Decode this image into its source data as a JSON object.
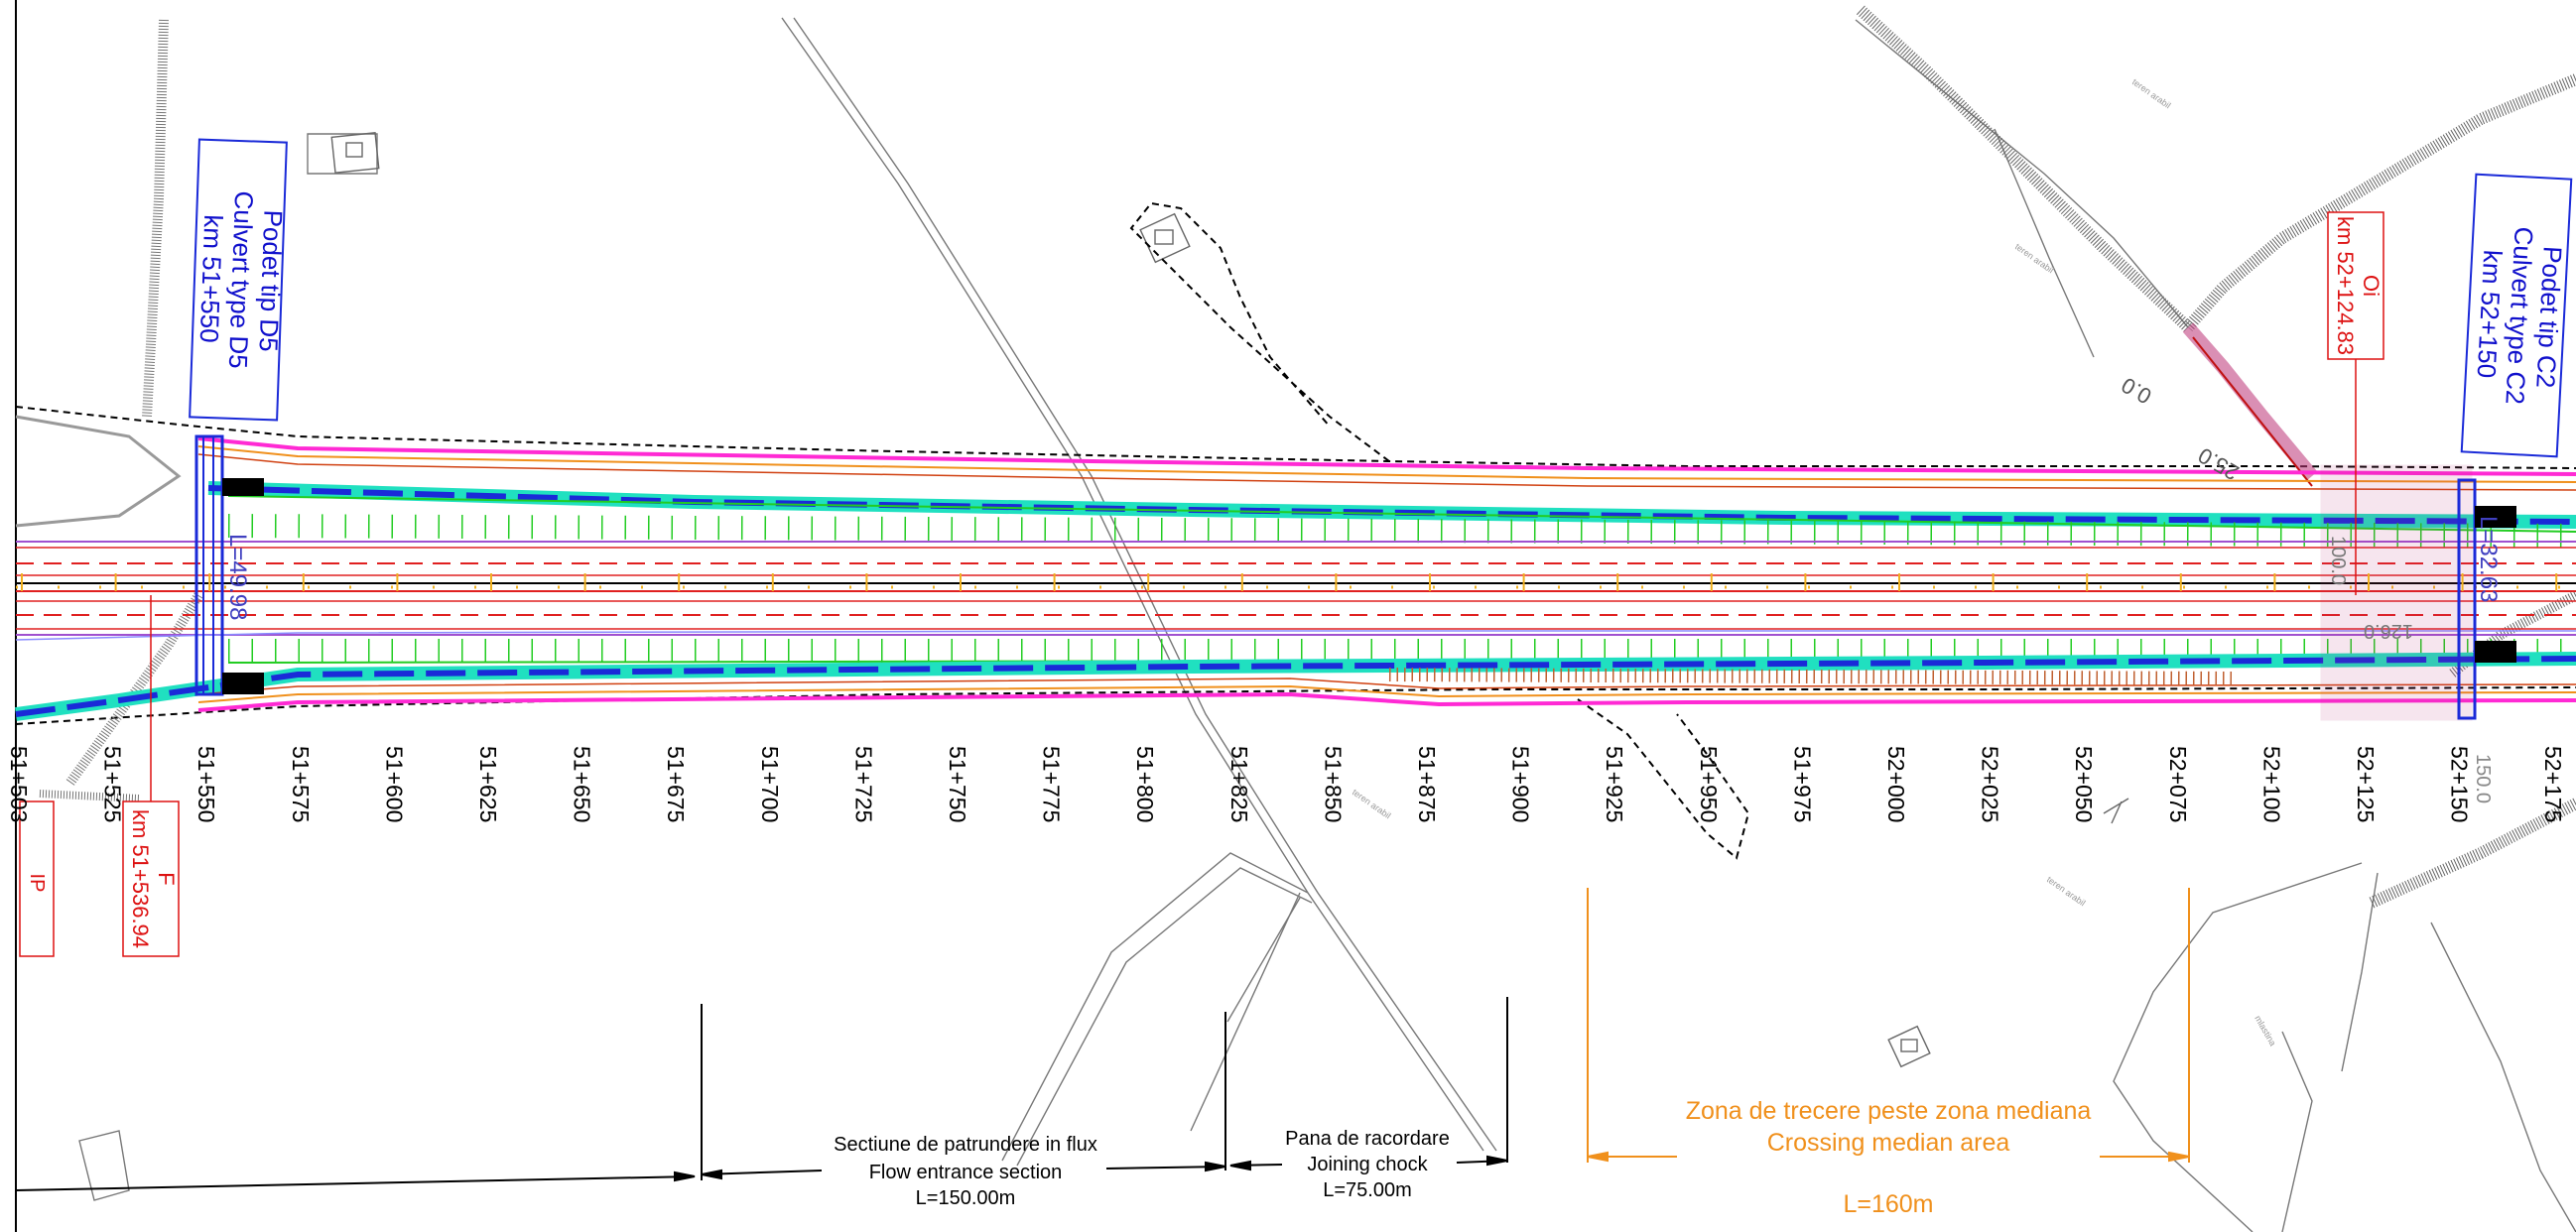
{
  "culvert_d5": {
    "ro": "Podet tip D5",
    "en": "Culvert type D5",
    "km": "km 51+550"
  },
  "culvert_c2": {
    "ro": "Podet tip C2",
    "en": "Culvert type C2",
    "km": "km 52+150"
  },
  "point_oi": {
    "code": "Oi",
    "km": "km 52+124.83"
  },
  "point_f": {
    "code": "F",
    "km": "km 51+536.94"
  },
  "point_ip": {
    "code": "IP"
  },
  "culvert_lengths": {
    "d5": "L=49.98",
    "c2": "L=32.63"
  },
  "stations": [
    "51+503",
    "51+525",
    "51+550",
    "51+575",
    "51+600",
    "51+625",
    "51+650",
    "51+675",
    "51+700",
    "51+725",
    "51+750",
    "51+775",
    "51+800",
    "51+825",
    "51+850",
    "51+875",
    "51+900",
    "51+925",
    "51+950",
    "51+975",
    "52+000",
    "52+025",
    "52+050",
    "52+075",
    "52+100",
    "52+125",
    "52+150",
    "52+175"
  ],
  "offset_labels": {
    "zero": "0.0",
    "d25": "25.0",
    "d100": "100.0",
    "d126": "126.0",
    "d150": "150.0"
  },
  "flow_entrance": {
    "ro": "Sectiune de patrundere in flux",
    "en": "Flow entrance section",
    "length": "L=150.00m"
  },
  "joining_chock": {
    "ro": "Pana de racordare",
    "en": "Joining chock",
    "length": "L=75.00m"
  },
  "crossing_median": {
    "ro": "Zona de trecere peste zona mediana",
    "en": "Crossing median area",
    "length": "L=160m"
  },
  "terrain_labels": [
    "teren arabil",
    "teren arabil",
    "teren arabil",
    "teren arabil",
    "mlastina"
  ],
  "colors": {
    "blue_text": "#1010cc",
    "red_text": "#dd1111",
    "orange": "#f0901c",
    "magenta": "#ff2ad4",
    "green": "#22cc22",
    "cyan": "#20e0c0"
  }
}
